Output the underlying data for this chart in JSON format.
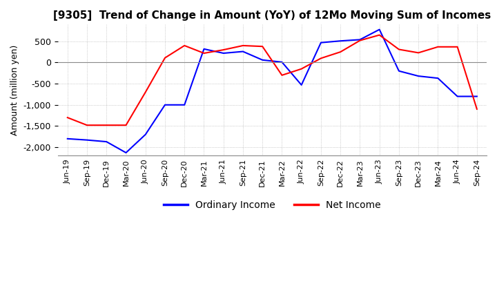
{
  "title": "[9305]  Trend of Change in Amount (YoY) of 12Mo Moving Sum of Incomes",
  "ylabel": "Amount (million yen)",
  "legend": [
    "Ordinary Income",
    "Net Income"
  ],
  "line_colors": [
    "#0000ff",
    "#ff0000"
  ],
  "x_labels": [
    "Jun-19",
    "Sep-19",
    "Dec-19",
    "Mar-20",
    "Jun-20",
    "Sep-20",
    "Dec-20",
    "Mar-21",
    "Jun-21",
    "Sep-21",
    "Dec-21",
    "Mar-22",
    "Jun-22",
    "Sep-22",
    "Dec-22",
    "Mar-23",
    "Jun-23",
    "Sep-23",
    "Dec-23",
    "Mar-24",
    "Jun-24",
    "Sep-24"
  ],
  "ordinary_income": [
    -1800,
    -1830,
    -1870,
    -2130,
    -1700,
    -1000,
    -1000,
    320,
    220,
    260,
    60,
    10,
    -530,
    470,
    510,
    540,
    780,
    -200,
    -320,
    -370,
    -800,
    -800
  ],
  "net_income": [
    -1300,
    -1480,
    -1480,
    -1480,
    -700,
    110,
    400,
    220,
    300,
    400,
    380,
    -300,
    -150,
    100,
    250,
    520,
    650,
    310,
    230,
    370,
    370,
    -1100
  ],
  "ylim": [
    -2200,
    900
  ],
  "yticks": [
    -2000,
    -1500,
    -1000,
    -500,
    0,
    500
  ],
  "background_color": "#ffffff",
  "grid_color": "#aaaaaa",
  "grid_style": "dotted"
}
